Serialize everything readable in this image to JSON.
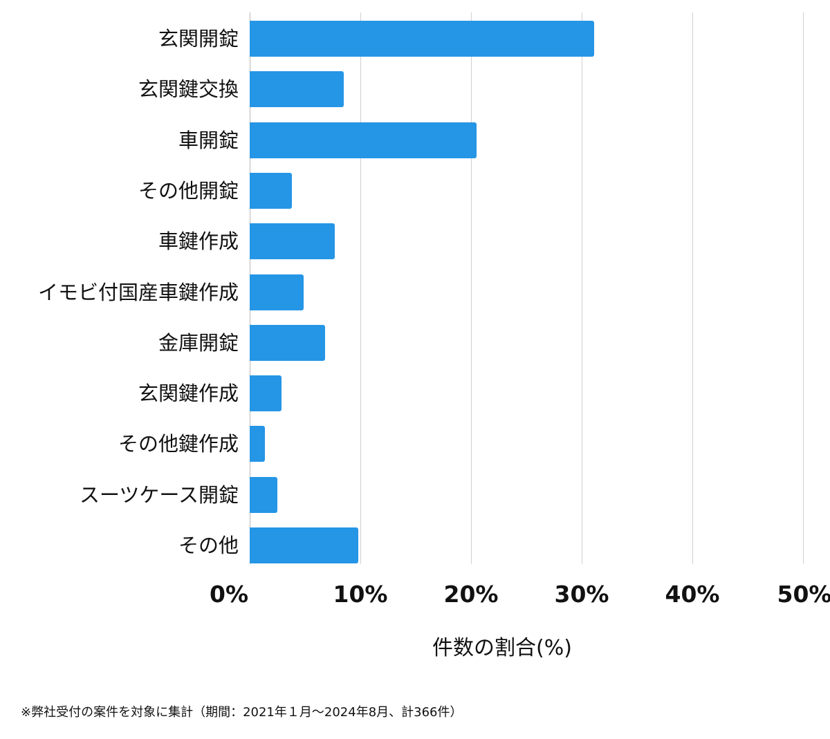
{
  "chart_data": {
    "type": "bar",
    "orientation": "horizontal",
    "title": "",
    "categories": [
      "玄関開錠",
      "玄関鍵交換",
      "車開錠",
      "その他開錠",
      "車鍵作成",
      "イモビ付国産車鍵作成",
      "金庫開錠",
      "玄関鍵作成",
      "その他鍵作成",
      "スーツケース開錠",
      "その他"
    ],
    "values": [
      31.1,
      8.5,
      20.5,
      3.8,
      7.7,
      4.9,
      6.8,
      2.9,
      1.4,
      2.5,
      9.8
    ],
    "xlabel": "件数の割合(%)",
    "ylabel": "",
    "xlim": [
      0,
      50
    ],
    "xticks": [
      "0%",
      "10%",
      "20%",
      "30%",
      "40%",
      "50%"
    ],
    "grid": true,
    "bar_color": "#2595e6",
    "footnote": "※弊社受付の案件を対象に集計（期間：2021年１月〜2024年8月、計366件）"
  }
}
